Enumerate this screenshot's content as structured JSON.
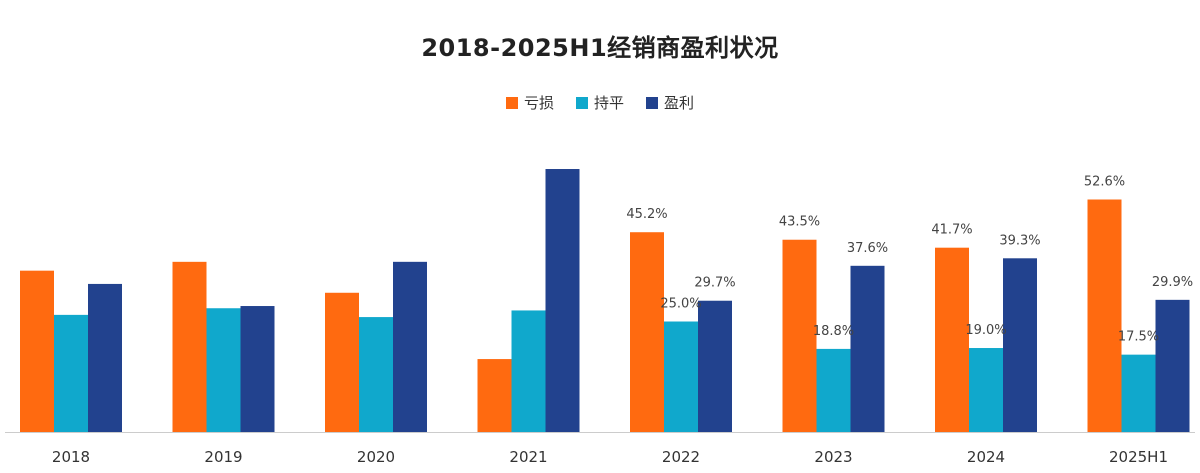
{
  "chart_data": {
    "type": "bar",
    "title": "2018-2025H1经销商盈利状况",
    "categories": [
      "2018",
      "2019",
      "2020",
      "2021",
      "2022",
      "2023",
      "2024",
      "2025H1"
    ],
    "series": [
      {
        "name": "亏损",
        "color": "#FF6A10",
        "values": [
          36.5,
          38.5,
          31.5,
          16.5,
          45.2,
          43.5,
          41.7,
          52.6
        ],
        "labels": [
          "",
          "",
          "",
          "",
          "45.2%",
          "43.5%",
          "41.7%",
          "52.6%"
        ]
      },
      {
        "name": "持平",
        "color": "#10A8CC",
        "values": [
          26.5,
          28.0,
          26.0,
          27.5,
          25.0,
          18.8,
          19.0,
          17.5
        ],
        "labels": [
          "",
          "",
          "",
          "",
          "25.0%",
          "18.8%",
          "19.0%",
          "17.5%"
        ]
      },
      {
        "name": "盈利",
        "color": "#22428E",
        "values": [
          33.5,
          28.5,
          38.5,
          59.5,
          29.7,
          37.6,
          39.3,
          29.9
        ],
        "labels": [
          "",
          "",
          "",
          "",
          "29.7%",
          "37.6%",
          "39.3%",
          "29.9%"
        ]
      }
    ],
    "ylim": [
      0,
      60
    ],
    "grid": false,
    "legend_position": "top-center"
  }
}
